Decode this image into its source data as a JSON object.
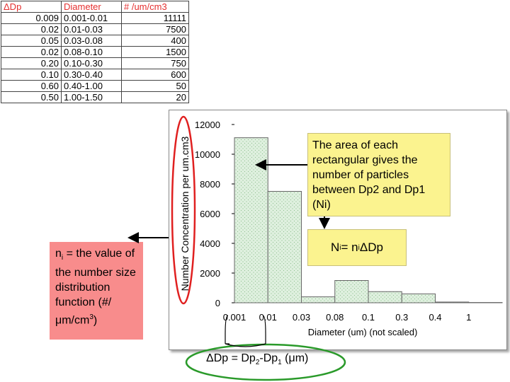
{
  "table": {
    "headers": [
      "ΔDp",
      "Diameter",
      "# /um/cm3"
    ],
    "rows": [
      [
        "0.009",
        "0.001-0.01",
        "11111"
      ],
      [
        "0.02",
        "0.01-0.03",
        "7500"
      ],
      [
        "0.05",
        "0.03-0.08",
        "400"
      ],
      [
        "0.02",
        "0.08-0.10",
        "1500"
      ],
      [
        "0.20",
        "0.10-0.30",
        "750"
      ],
      [
        "0.10",
        "0.30-0.40",
        "600"
      ],
      [
        "0.60",
        "0.40-1.00",
        "50"
      ],
      [
        "0.50",
        "1.00-1.50",
        "20"
      ]
    ]
  },
  "chart_data": {
    "type": "bar",
    "x_tick_labels": [
      "0.001",
      "0.01",
      "0.03",
      "0.08",
      "0.1",
      "0.3",
      "0.4",
      "1"
    ],
    "categories": [
      "0.001-0.01",
      "0.01-0.03",
      "0.03-0.08",
      "0.08-0.10",
      "0.10-0.30",
      "0.30-0.40",
      "0.40-1.00",
      "1.00-1.50"
    ],
    "values": [
      11111,
      7500,
      400,
      1500,
      750,
      600,
      50,
      20
    ],
    "ylim": [
      0,
      12000
    ],
    "yticks": [
      "0",
      "2000",
      "4000",
      "6000",
      "8000",
      "10000",
      "12000"
    ],
    "xlabel": "Diameter (um) (not scaled)",
    "ylabel": "Number Concentration per um.cm3",
    "bar_color": "#dff0df",
    "bar_hatch_color": "#8fbf8f",
    "grid": false
  },
  "annotations": {
    "area_note": "The area of each rectangular gives the number of particles between Dp2 and Dp1 (Ni)",
    "ni_formula": {
      "N": "N",
      "i1": "i",
      "eq": " = n",
      "i2": "i",
      "dp": " ΔDp"
    },
    "ni_def": {
      "n": "n",
      "sub": "i",
      "text": " = the value of the number size distribution function (#/μm/cm",
      "sup": "3",
      "close": ")"
    },
    "dp_def": {
      "pre": "ΔDp = Dp",
      "s2": "2",
      "mid": "-Dp",
      "s1": "1",
      "post": " (μm)"
    }
  },
  "colors": {
    "header_text": "#e53030",
    "callout_bg": "#fbf38f",
    "ni_box_bg": "#f88c8c",
    "ylabel_ellipse": "#e02020",
    "dp_ellipse": "#2a9a2a"
  }
}
